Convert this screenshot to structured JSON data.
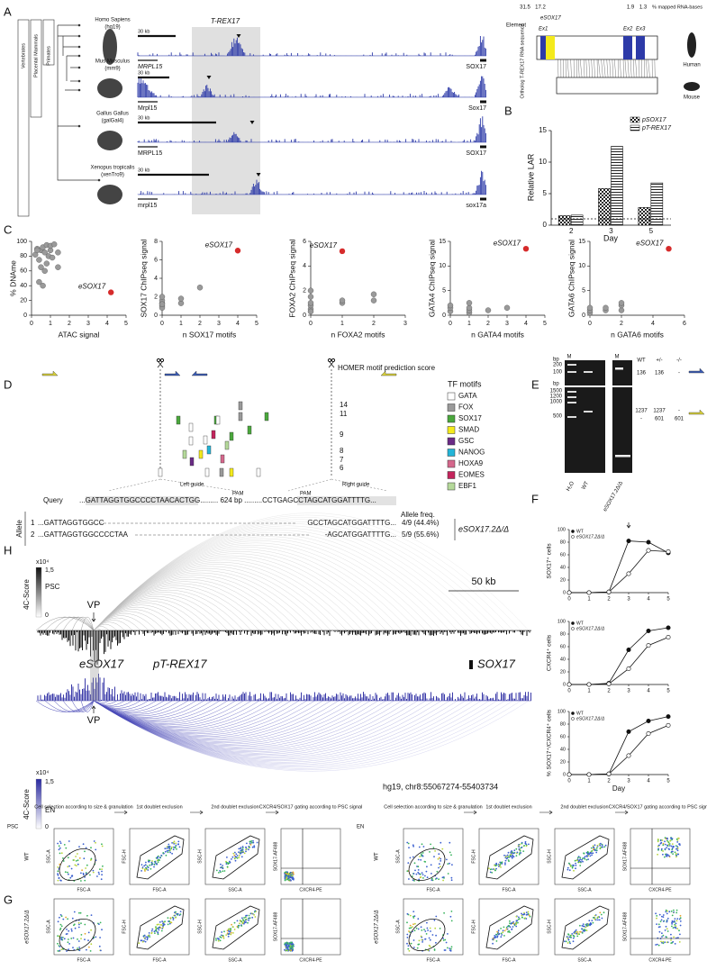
{
  "panel_labels": [
    "A",
    "B",
    "C",
    "D",
    "E",
    "F",
    "G",
    "H"
  ],
  "A": {
    "clades": [
      {
        "name": "Vertebrates",
        "color": "#9bbb3b"
      },
      {
        "name": "Placental Mammals",
        "color": "#47b2d6"
      },
      {
        "name": "Primates",
        "color": "#e8622c"
      }
    ],
    "species": [
      {
        "name": "Homo Sapiens",
        "assembly": "(hg19)",
        "color": "#e8622c"
      },
      {
        "name": "Mus Musculus",
        "assembly": "(mm9)",
        "color": "#47b2d6"
      },
      {
        "name": "Gallus Gallus",
        "assembly": "(galGal4)",
        "color": "#9bbb3b"
      },
      {
        "name": "Xenopus tropicalis",
        "assembly": "(xenTro9)",
        "color": "#9bbb3b"
      }
    ],
    "locus": "T-REX17",
    "tracks": [
      {
        "scale": "30 kb",
        "left_gene": "MRPL15",
        "right_gene": "SOX17"
      },
      {
        "scale": "30 kb",
        "left_gene": "Mrpl15",
        "right_gene": "Sox17"
      },
      {
        "scale": "30 kb",
        "left_gene": "MRPL15",
        "right_gene": "SOX17"
      },
      {
        "scale": "30 kb",
        "left_gene": "mrpl15",
        "right_gene": "sox17a"
      }
    ],
    "element": {
      "title": "% mapped RNA-bases",
      "percentages": [
        "31.5",
        "17.2",
        "1.9",
        "1.3"
      ],
      "label": "Element",
      "enhancer": "eSOX17",
      "exons": [
        "Ex1",
        "Ex2",
        "Ex3"
      ],
      "axis": "Ortholog T-REX17 RNA sequence",
      "species": [
        "Human",
        "Mouse"
      ]
    }
  },
  "B": {
    "type": "bar",
    "ylabel": "Relative LAR",
    "xlabel": "Day",
    "categories": [
      "2",
      "3",
      "5"
    ],
    "series": [
      {
        "name": "pSOX17",
        "values": [
          1.5,
          5.8,
          2.8
        ]
      },
      {
        "name": "pT-REX17",
        "values": [
          1.6,
          12.5,
          6.7
        ]
      }
    ],
    "ylim": [
      0,
      15
    ],
    "yticks": [
      0,
      5,
      10,
      15
    ],
    "reference": 1
  },
  "C": {
    "type": "scatter",
    "point_color": "#9a9a9a",
    "highlight_color": "#d62b2b",
    "plots": [
      {
        "xlabel": "ATAC signal",
        "ylabel": "% DNAme",
        "xlim": [
          0,
          5
        ],
        "ylim": [
          0,
          100
        ],
        "xticks": [
          0,
          1,
          2,
          3,
          4,
          5
        ],
        "yticks": [
          0,
          20,
          40,
          60,
          80,
          100
        ],
        "x": [
          0.2,
          0.3,
          0.4,
          0.5,
          0.5,
          0.6,
          0.7,
          0.8,
          0.8,
          0.9,
          1.0,
          1.0,
          1.1,
          1.2,
          1.4,
          0.4,
          0.6,
          1.4,
          0.7,
          0.3
        ],
        "y": [
          82,
          90,
          75,
          88,
          65,
          92,
          85,
          95,
          70,
          80,
          88,
          94,
          78,
          96,
          85,
          45,
          40,
          65,
          60,
          88
        ],
        "highlight": {
          "label": "eSOX17",
          "x": 4.2,
          "y": 31
        }
      },
      {
        "xlabel": "n SOX17 motifs",
        "ylabel": "SOX17 ChIPseq signal",
        "xlim": [
          0,
          5
        ],
        "ylim": [
          0,
          8
        ],
        "xticks": [
          0,
          1,
          2,
          3,
          4,
          5
        ],
        "yticks": [
          0,
          2,
          4,
          6,
          8
        ],
        "x": [
          0,
          0,
          0,
          0,
          0,
          0,
          1,
          1,
          2
        ],
        "y": [
          1,
          1.3,
          1.6,
          0.8,
          2,
          1.2,
          1.3,
          1.8,
          3
        ],
        "highlight": {
          "label": "eSOX17",
          "x": 4,
          "y": 7
        }
      },
      {
        "xlabel": "n FOXA2 motifs",
        "ylabel": "FOXA2 ChIPseq signal",
        "xlim": [
          0,
          3
        ],
        "ylim": [
          0,
          6
        ],
        "xticks": [
          0,
          1,
          2,
          3
        ],
        "yticks": [
          0,
          2,
          4,
          6
        ],
        "x": [
          0,
          0,
          0,
          0,
          0,
          0,
          1,
          1,
          2,
          2
        ],
        "y": [
          0.5,
          0.8,
          1,
          1.5,
          2,
          0.3,
          1,
          1.2,
          1.2,
          1.7
        ],
        "highlight": {
          "label": "eSOX17",
          "x": 1,
          "y": 5.2
        }
      },
      {
        "xlabel": "n GATA4 motifs",
        "ylabel": "GATA4 ChIPseq signal",
        "xlim": [
          0,
          5
        ],
        "ylim": [
          0,
          15
        ],
        "xticks": [
          0,
          1,
          2,
          3,
          4,
          5
        ],
        "yticks": [
          0,
          5,
          10,
          15
        ],
        "x": [
          0,
          0,
          0,
          1,
          1,
          1,
          1,
          2,
          3
        ],
        "y": [
          0.8,
          1.5,
          2,
          0.5,
          1,
          1.5,
          2.5,
          1,
          1.5
        ],
        "highlight": {
          "label": "eSOX17",
          "x": 4,
          "y": 13.5
        }
      },
      {
        "xlabel": "n GATA6 motifs",
        "ylabel": "GATA6 ChIPseq signal",
        "xlim": [
          0,
          6
        ],
        "ylim": [
          0,
          15
        ],
        "xticks": [
          0,
          2,
          4,
          6
        ],
        "yticks": [
          0,
          5,
          10,
          15
        ],
        "x": [
          0,
          0,
          0,
          1,
          1,
          2,
          2,
          2
        ],
        "y": [
          0.5,
          1,
          1.5,
          1,
          1.5,
          1,
          2,
          2.5
        ],
        "highlight": {
          "label": "eSOX17",
          "x": 5,
          "y": 13.5
        }
      }
    ]
  },
  "D": {
    "homer_title": "HOMER motif prediction score",
    "scores": [
      "14",
      "11",
      "9",
      "8",
      "7",
      "6"
    ],
    "motif_title": "TF motifs",
    "motifs": [
      {
        "name": "GATA",
        "color": "#ffffff"
      },
      {
        "name": "FOX",
        "color": "#9a9a9a"
      },
      {
        "name": "SOX17",
        "color": "#4aa83c"
      },
      {
        "name": "SMAD",
        "color": "#f4ea1c"
      },
      {
        "name": "GSC",
        "color": "#6a2a86"
      },
      {
        "name": "NANOG",
        "color": "#23b5d8"
      },
      {
        "name": "HOXA9",
        "color": "#d5678c"
      },
      {
        "name": "EOMES",
        "color": "#c4245c"
      },
      {
        "name": "EBF1",
        "color": "#b5d99a"
      }
    ],
    "left_guide": "Left guide",
    "right_guide": "Right guide",
    "pam": "PAM",
    "query_label": "Query",
    "query": "...GATTAGGTGGCCCCTAACACTGG......... 624 bp .........CCTGAGCCTAGCATGGATTTTG...",
    "allele_label": "Allele",
    "freq_title": "Allele freq.",
    "alleles": [
      {
        "id": "1",
        "left": "...GATTAGGTGGCC",
        "right": "GCCTAGCATGGATTTTG...",
        "freq": "4/9 (44.4%)"
      },
      {
        "id": "2",
        "left": "...GATTAGGTGGCCCCTAA",
        "right": "-AGCATGGATTTTG...",
        "freq": "5/9 (55.6%)"
      }
    ],
    "genotype": "eSOX17.2Δ/Δ"
  },
  "E": {
    "marker": "M",
    "unit": "bp",
    "ladder_top": [
      "200",
      "100"
    ],
    "ladder_bottom": [
      "1500",
      "1200",
      "1000",
      "500"
    ],
    "lanes": [
      "H₂O",
      "WT",
      "eSOX17.2Δ/Δ"
    ],
    "genotypes": [
      "WT",
      "+/-",
      "-/-"
    ],
    "rows": [
      [
        "136",
        "136",
        "-"
      ],
      [
        "1237",
        "1237",
        "-"
      ],
      [
        "-",
        "601",
        "601"
      ]
    ]
  },
  "F": {
    "type": "line",
    "xlabel": "Day",
    "x": [
      0,
      1,
      2,
      3,
      4,
      5
    ],
    "xlim": [
      0,
      5
    ],
    "xticks": [
      0,
      1,
      2,
      3,
      4,
      5
    ],
    "ylim": [
      0,
      100
    ],
    "yticks": [
      0,
      20,
      40,
      60,
      80,
      100
    ],
    "plots": [
      {
        "ylabel": "SOX17⁺ cells",
        "series": [
          {
            "name": "WT",
            "values": [
              0,
              0,
              1,
              82,
              80,
              63
            ]
          },
          {
            "name": "eSOX17.2Δ/Δ",
            "values": [
              0,
              0,
              1,
              30,
              67,
              65
            ]
          }
        ]
      },
      {
        "ylabel": "CXCR4⁺ cells",
        "series": [
          {
            "name": "WT",
            "values": [
              0,
              0,
              2,
              55,
              85,
              90
            ]
          },
          {
            "name": "eSOX17.2Δ/Δ",
            "values": [
              0,
              0,
              1,
              25,
              62,
              75
            ]
          }
        ]
      },
      {
        "ylabel": "% SOX17⁺/CXCR4⁺ cells",
        "series": [
          {
            "name": "WT",
            "values": [
              0,
              0,
              1,
              68,
              85,
              92
            ]
          },
          {
            "name": "eSOX17.2Δ/Δ",
            "values": [
              0,
              0,
              1,
              30,
              65,
              78
            ]
          }
        ]
      }
    ]
  },
  "H": {
    "exponent": "x10⁴",
    "max": "1,5",
    "min": "0",
    "score_label": "4C-Score",
    "top_condition": "PSC",
    "bottom_condition": "EN",
    "viewpoint": "VP",
    "scale": "50 kb",
    "genes": [
      "eSOX17",
      "pT-REX17",
      "SOX17"
    ],
    "coordinates": "hg19, chr8:55067274-55403734"
  },
  "G": {
    "steps": [
      "Cell selection according to size & granulation",
      "1st doublet exclusion",
      "2nd doublet exclusion",
      "CXCR4/SOX17 gating according to PSC signal"
    ],
    "axes": [
      {
        "x": "FSC-A",
        "y": "SSC-A"
      },
      {
        "x": "FSC-A",
        "y": "FSC-H"
      },
      {
        "x": "SSC-A",
        "y": "SSC-H"
      },
      {
        "x": "CXCR4-PE",
        "y": "SOX17-AF488"
      }
    ],
    "conditions": [
      {
        "name": "PSC",
        "rows": [
          "WT",
          "eSOX17.2Δ/Δ"
        ]
      },
      {
        "name": "EN",
        "rows": [
          "WT",
          "eSOX17.2Δ/Δ"
        ]
      }
    ]
  }
}
